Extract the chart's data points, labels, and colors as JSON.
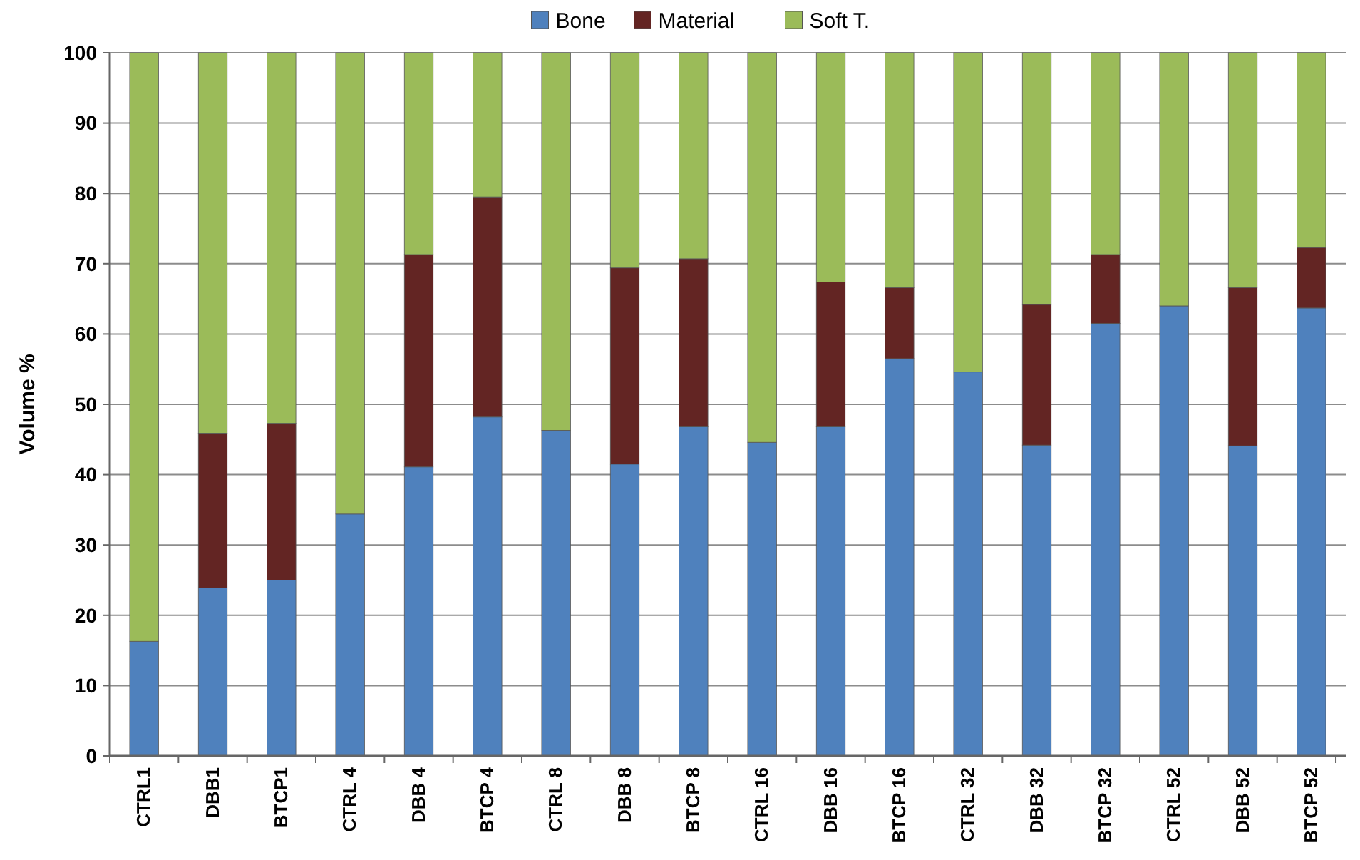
{
  "chart_data": {
    "type": "bar",
    "stacked": true,
    "ylabel": "Volume %",
    "categories": [
      "CTRL1",
      "DBB1",
      "BTCP1",
      "CTRL 4",
      "DBB 4",
      "BTCP 4",
      "CTRL 8",
      "DBB 8",
      "BTCP 8",
      "CTRL 16",
      "DBB 16",
      "BTCP 16",
      "CTRL 32",
      "DBB 32",
      "BTCP 32",
      "CTRL 52",
      "DBB 52",
      "BTCP 52"
    ],
    "series": [
      {
        "name": "Bone",
        "color": "#4f81bd",
        "values": [
          16.3,
          23.9,
          25,
          34.4,
          41.1,
          48.2,
          46.3,
          41.5,
          46.8,
          44.6,
          46.8,
          56.5,
          54.6,
          44.2,
          61.5,
          64,
          44.1,
          63.7
        ]
      },
      {
        "name": "Material",
        "color": "#632523",
        "values": [
          0,
          22,
          22.3,
          0,
          30.2,
          31.3,
          0,
          27.9,
          23.9,
          0,
          20.6,
          10.1,
          0,
          20,
          9.8,
          0,
          22.5,
          8.6
        ]
      },
      {
        "name": "Soft T.",
        "color": "#9bbb59",
        "values": [
          83.7,
          54.1,
          52.7,
          65.6,
          28.7,
          20.5,
          53.7,
          30.6,
          29.3,
          55.4,
          32.6,
          33.4,
          45.4,
          35.8,
          28.7,
          36,
          33.4,
          27.7
        ]
      }
    ],
    "ylim": [
      0,
      100
    ],
    "yticks": [
      0,
      10,
      20,
      30,
      40,
      50,
      60,
      70,
      80,
      90,
      100
    ],
    "grid": "y",
    "legend": "top"
  }
}
